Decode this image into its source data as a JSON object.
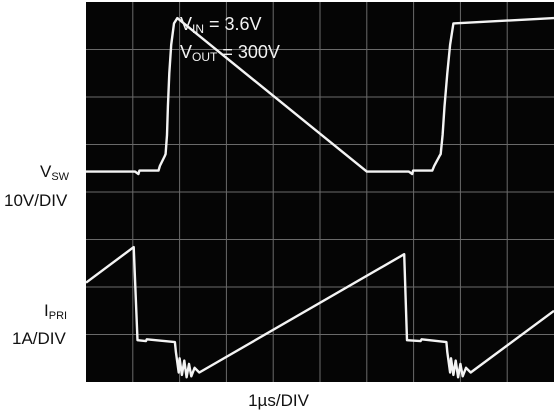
{
  "chart_data": {
    "type": "line",
    "title": "",
    "annotations": [
      {
        "symbol": "V",
        "subscript": "IN",
        "text": " = 3.6V"
      },
      {
        "symbol": "V",
        "subscript": "OUT",
        "text": " = 300V"
      }
    ],
    "xlabel": "1µs/DIV",
    "x_units": "div",
    "xlim": [
      0,
      10
    ],
    "y_units": "div",
    "ylim": [
      0,
      8
    ],
    "grid": true,
    "grid_divisions": {
      "x": 10,
      "y": 8
    },
    "channels": [
      {
        "symbol": "V",
        "subscript": "SW",
        "scale": "10V/DIV"
      },
      {
        "symbol": "I",
        "subscript": "PRI",
        "scale": "1A/DIV"
      }
    ],
    "series": [
      {
        "x": [
          0.0,
          1.05,
          1.12,
          1.14,
          1.55,
          1.58,
          1.68,
          1.7,
          1.73,
          1.75,
          1.78,
          1.82,
          1.88,
          1.95,
          6.0,
          6.9,
          6.97,
          6.99,
          7.4,
          7.44,
          7.55,
          7.58,
          7.62,
          7.66,
          7.72,
          7.78,
          7.85,
          10.0
        ],
        "y": [
          4.43,
          4.43,
          4.38,
          4.45,
          4.45,
          4.55,
          4.75,
          4.8,
          5.2,
          5.8,
          6.5,
          7.1,
          7.55,
          7.66,
          4.43,
          4.43,
          4.38,
          4.45,
          4.45,
          4.55,
          4.75,
          4.8,
          5.2,
          5.8,
          6.5,
          7.1,
          7.55,
          7.66
        ]
      },
      {
        "x": [
          0.0,
          1.02,
          1.1,
          1.28,
          1.3,
          1.9,
          1.92,
          1.98,
          2.0,
          2.05,
          2.1,
          2.15,
          2.2,
          2.25,
          2.32,
          2.42,
          6.8,
          6.86,
          7.15,
          7.17,
          7.7,
          7.72,
          7.78,
          7.8,
          7.85,
          7.9,
          7.95,
          8.0,
          8.05,
          8.12,
          8.22,
          10.0
        ],
        "y": [
          2.09,
          2.84,
          0.88,
          0.86,
          0.9,
          0.84,
          0.63,
          0.2,
          0.5,
          0.15,
          0.45,
          0.1,
          0.38,
          0.12,
          0.3,
          0.2,
          2.69,
          0.88,
          0.86,
          0.9,
          0.84,
          0.63,
          0.2,
          0.5,
          0.15,
          0.45,
          0.1,
          0.38,
          0.12,
          0.3,
          0.2,
          1.5
        ]
      }
    ]
  }
}
